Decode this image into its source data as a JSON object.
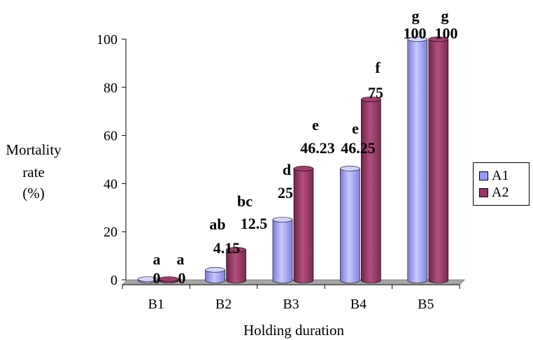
{
  "chart_data": {
    "type": "bar",
    "title": "",
    "xlabel": "Holding duration",
    "ylabel": [
      "Mortality",
      "rate",
      "(%)"
    ],
    "categories": [
      "B1",
      "B2",
      "B3",
      "B4",
      "B5"
    ],
    "ylim": [
      0,
      100
    ],
    "yticks": [
      0,
      20,
      40,
      60,
      80,
      100
    ],
    "legend_position": "right",
    "series": [
      {
        "name": "A1",
        "color": "#9999ff",
        "values": [
          0,
          4.15,
          25,
          46.25,
          100
        ],
        "value_labels": [
          "0",
          "4.15",
          "25",
          "46.25",
          "100"
        ],
        "letters": [
          "a",
          "ab",
          "d",
          "e",
          "g"
        ]
      },
      {
        "name": "A2",
        "color": "#993366",
        "values": [
          0,
          12.5,
          46.23,
          75,
          100
        ],
        "value_labels": [
          "0",
          "12.5",
          "46.23",
          "75",
          "100"
        ],
        "letters": [
          "a",
          "bc",
          "e",
          "f",
          "g"
        ]
      }
    ]
  }
}
